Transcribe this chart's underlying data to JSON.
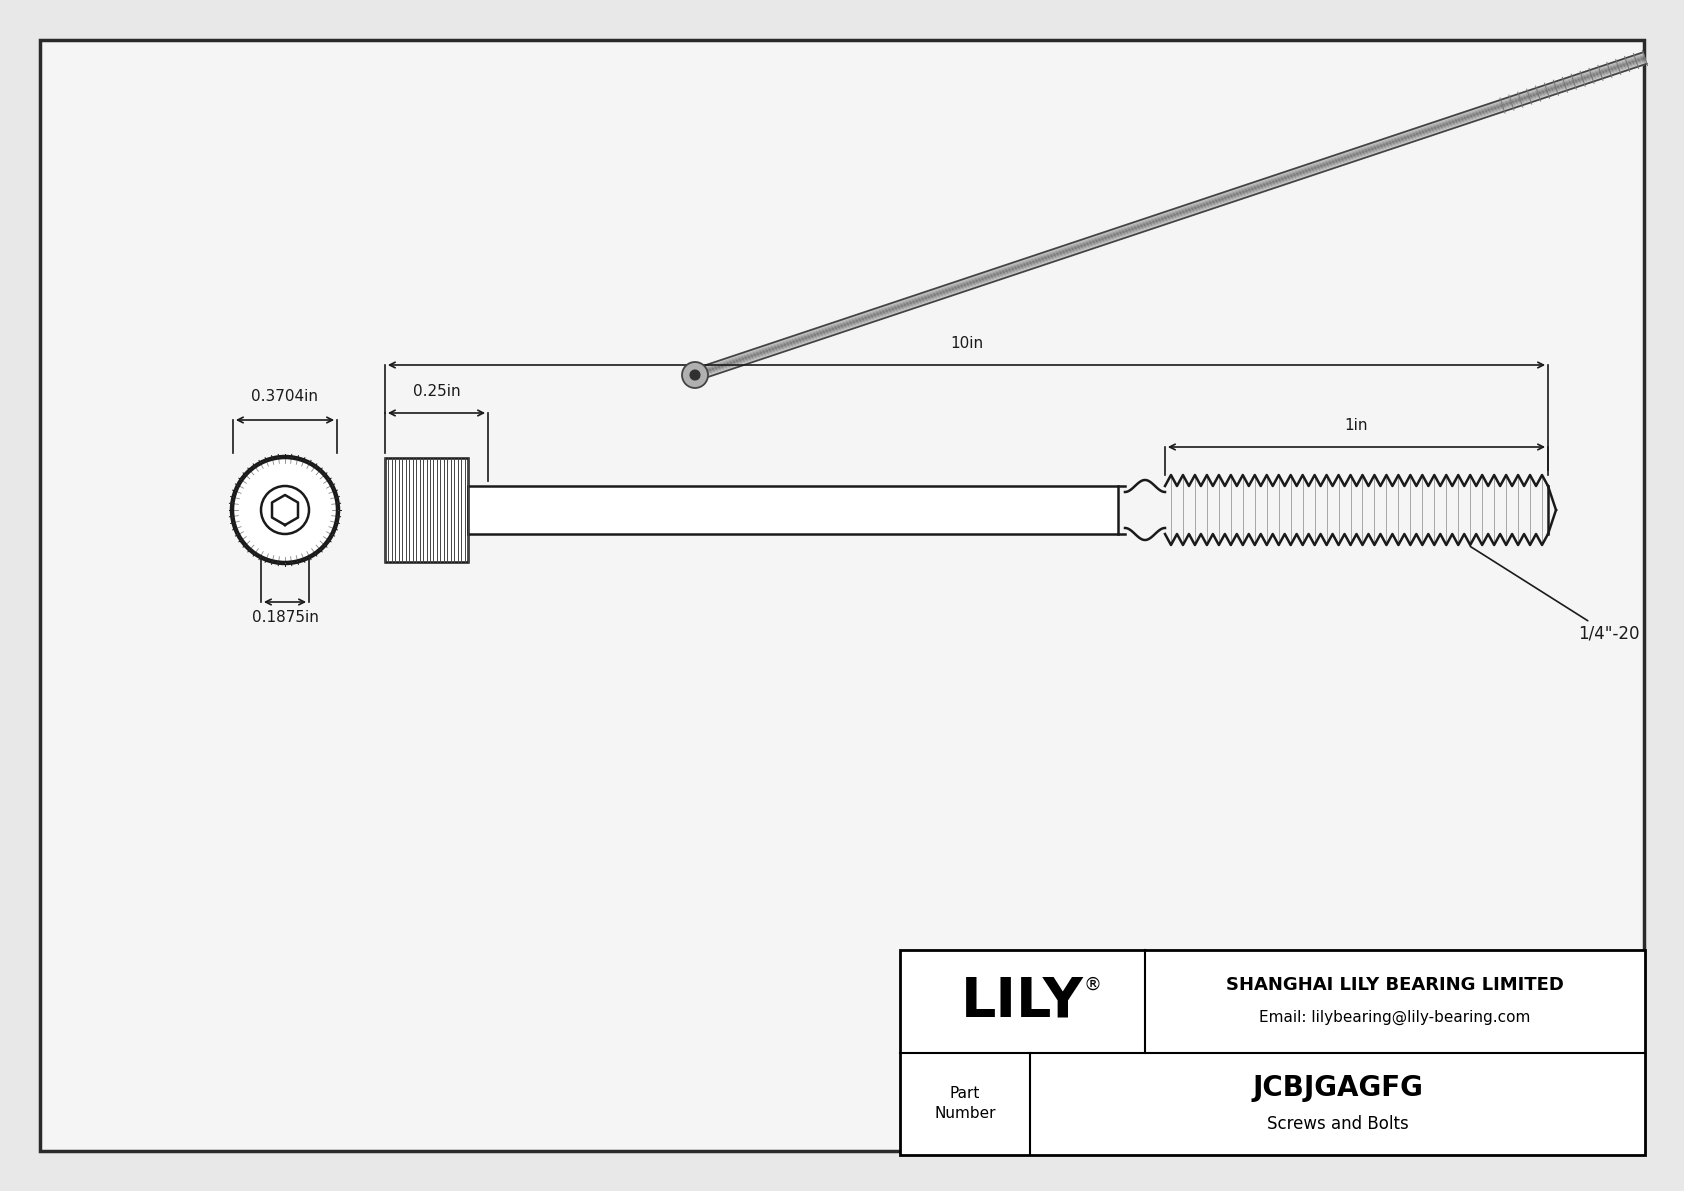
{
  "bg_color": "#e8e8e8",
  "drawing_bg": "#f5f5f5",
  "border_color": "#2a2a2a",
  "line_color": "#1a1a1a",
  "dim_color": "#1a1a1a",
  "title": "JCBJGAGFG",
  "subtitle": "Screws and Bolts",
  "company_name": "SHANGHAI LILY BEARING LIMITED",
  "company_email": "Email: lilybearing@lily-bearing.com",
  "company_logo": "LILY",
  "dim_head_width": "0.3704in",
  "dim_head_height": "0.1875in",
  "dim_shank_diam": "0.25in",
  "dim_length": "10in",
  "dim_thread_length": "1in",
  "dim_thread_label": "1/4\"-20"
}
